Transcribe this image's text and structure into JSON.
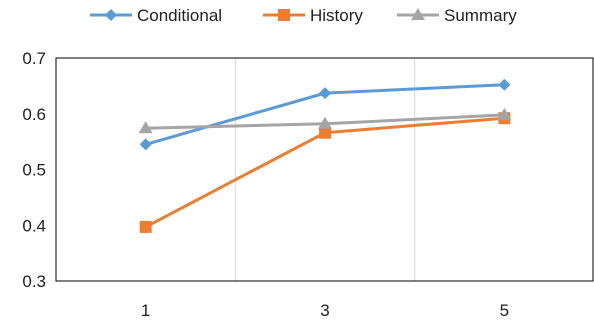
{
  "chart_data": {
    "type": "line",
    "title": "",
    "xlabel": "",
    "ylabel": "",
    "categories": [
      "1",
      "3",
      "5"
    ],
    "ylim": [
      0.3,
      0.7
    ],
    "yticks": [
      "0.3",
      "0.4",
      "0.5",
      "0.6",
      "0.7"
    ],
    "grid": "vertical",
    "legend_position": "top",
    "series": [
      {
        "name": "Conditional",
        "values": [
          0.545,
          0.637,
          0.652
        ],
        "color": "#5B9BD5",
        "marker": "diamond"
      },
      {
        "name": "History",
        "values": [
          0.397,
          0.566,
          0.592
        ],
        "color": "#ED7D31",
        "marker": "square"
      },
      {
        "name": "Summary",
        "values": [
          0.574,
          0.582,
          0.598
        ],
        "color": "#A5A5A5",
        "marker": "triangle"
      }
    ]
  }
}
